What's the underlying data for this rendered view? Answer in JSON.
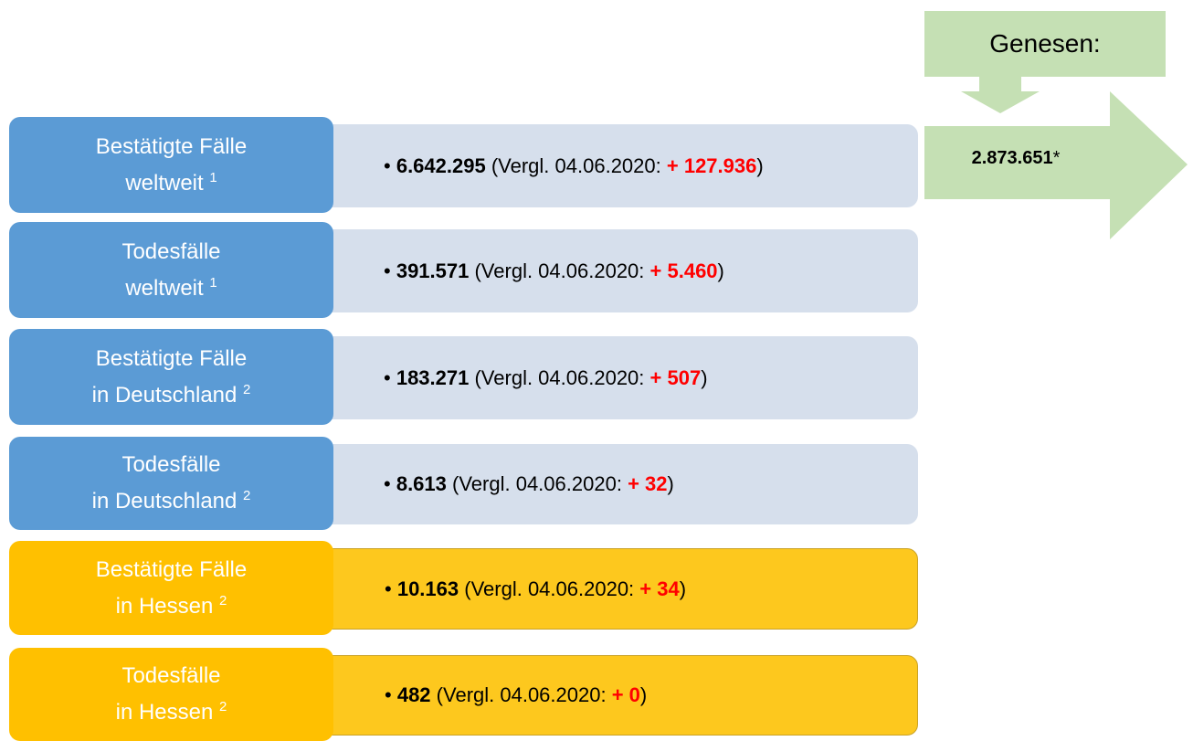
{
  "genesen": {
    "title": "Genesen:",
    "value": "2.873.651",
    "note": "*"
  },
  "rows": [
    {
      "label": [
        "Bestätigte Fälle",
        "weltweit"
      ],
      "footnote": "1",
      "value": "6.642.295",
      "comparison": "(Vergl. 04.06.2020:",
      "delta": "+ 127.936",
      "close": ")"
    },
    {
      "label": [
        "Todesfälle",
        "weltweit"
      ],
      "footnote": "1",
      "value": "391.571",
      "comparison": "(Vergl. 04.06.2020:",
      "delta": "+ 5.460",
      "close": ")"
    },
    {
      "label": [
        "Bestätigte Fälle",
        "in Deutschland"
      ],
      "footnote": "2",
      "value": "183.271",
      "comparison": "(Vergl. 04.06.2020:",
      "delta": "+ 507",
      "close": ")"
    },
    {
      "label": [
        "Todesfälle",
        "in Deutschland"
      ],
      "footnote": "2",
      "value": "8.613",
      "comparison": "(Vergl. 04.06.2020:",
      "delta": "+ 32",
      "close": ")"
    },
    {
      "label": [
        "Bestätigte Fälle",
        "in Hessen"
      ],
      "footnote": "2",
      "value": "10.163",
      "comparison": "(Vergl. 04.06.2020:",
      "delta": "+ 34",
      "close": ")"
    },
    {
      "label": [
        "Todesfälle",
        "in Hessen"
      ],
      "footnote": "2",
      "value": "482",
      "comparison": "(Vergl. 04.06.2020:",
      "delta": "+ 0",
      "close": ")"
    }
  ]
}
